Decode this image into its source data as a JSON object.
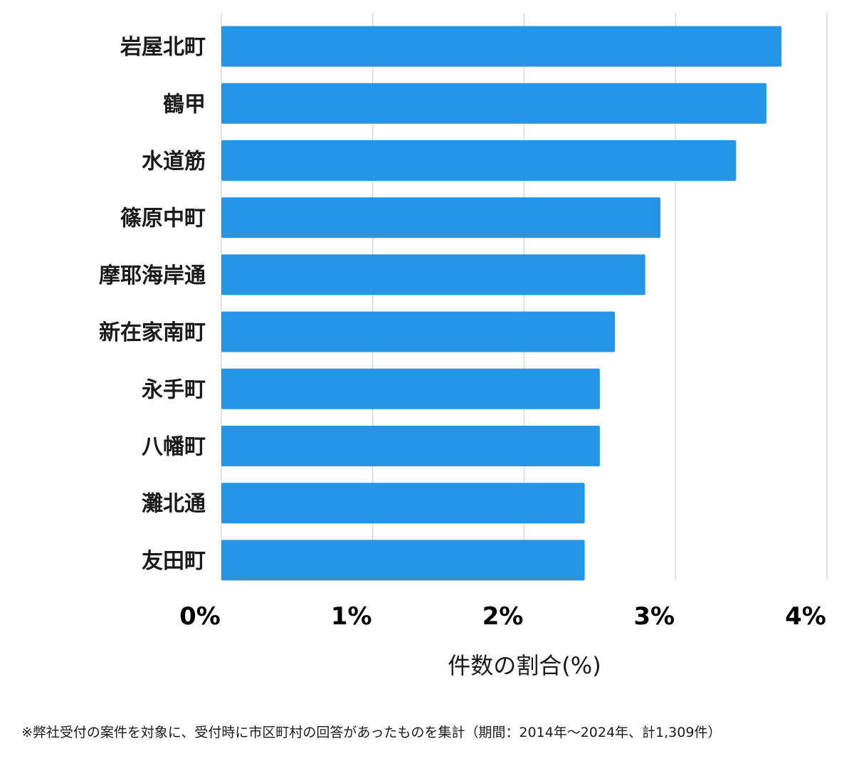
{
  "chart_data": {
    "type": "bar",
    "orientation": "horizontal",
    "categories": [
      "岩屋北町",
      "鶴甲",
      "水道筋",
      "篠原中町",
      "摩耶海岸通",
      "新在家南町",
      "永手町",
      "八幡町",
      "灘北通",
      "友田町"
    ],
    "values": [
      3.7,
      3.6,
      3.4,
      2.9,
      2.8,
      2.6,
      2.5,
      2.5,
      2.4,
      2.4
    ],
    "xlim": [
      0,
      4
    ],
    "xticks": [
      0,
      1,
      2,
      3,
      4
    ],
    "tick_labels": [
      "0%",
      "1%",
      "2%",
      "3%",
      "4%"
    ],
    "xlabel": "件数の割合(%)",
    "ylabel": "",
    "grid": true,
    "bar_color": "#2596e6"
  },
  "footnote": "※弊社受付の案件を対象に、受付時に市区町村の回答があったものを集計（期間：2014年～2024年、計1,309件）"
}
